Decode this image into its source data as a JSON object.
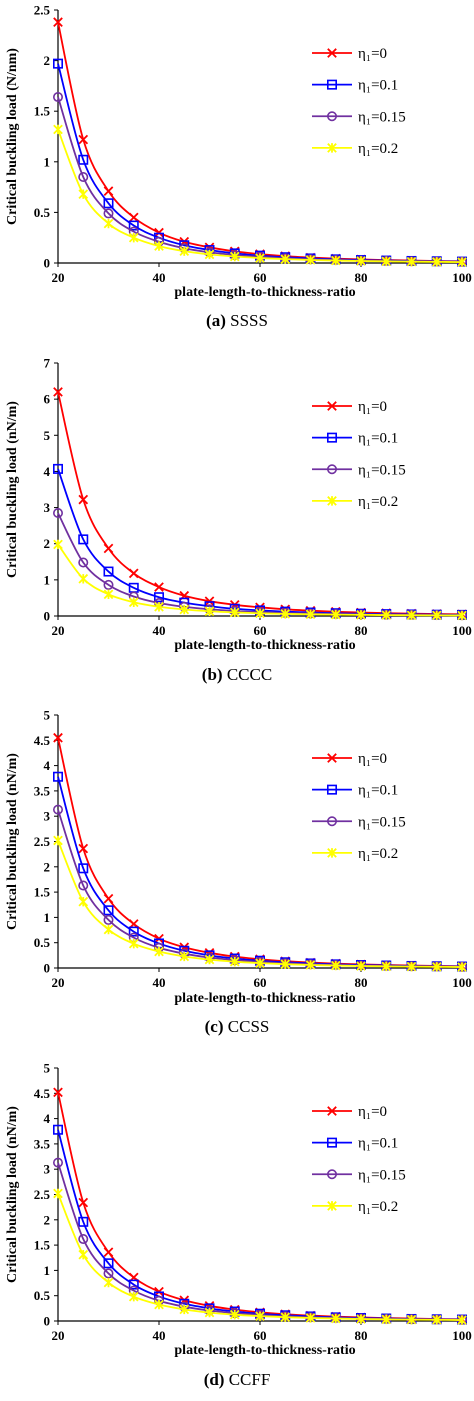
{
  "colors": {
    "eta_0": "#ff0000",
    "eta_0_1": "#0000ff",
    "eta_0_15": "#7030a0",
    "eta_0_2": "#ffff00"
  },
  "chart_data": [
    {
      "type": "line",
      "caption_letter": "(a)",
      "caption_name": "SSSS",
      "xlabel": "plate-length-to-thickness-ratio",
      "ylabel": "Critical buckling load (N/nm)",
      "x": [
        20,
        25,
        30,
        35,
        40,
        45,
        50,
        55,
        60,
        65,
        70,
        75,
        80,
        85,
        90,
        95,
        100
      ],
      "xlim": [
        20,
        100
      ],
      "ylim": [
        0,
        2.5
      ],
      "xticks": [
        20,
        40,
        60,
        80,
        100
      ],
      "yticks": [
        0,
        0.5,
        1,
        1.5,
        2,
        2.5
      ],
      "ytick_labels": [
        "0",
        "0.5",
        "1",
        "1.5",
        "2",
        "2.5"
      ],
      "legend_position": "top-right",
      "series": [
        {
          "name": "η₁=0",
          "marker": "x",
          "color": "#ff0000",
          "values": [
            2.38,
            1.22,
            0.71,
            0.45,
            0.3,
            0.21,
            0.155,
            0.115,
            0.088,
            0.068,
            0.054,
            0.043,
            0.035,
            0.029,
            0.024,
            0.02,
            0.017
          ]
        },
        {
          "name": "η₁=0.1",
          "marker": "square",
          "color": "#0000ff",
          "values": [
            1.97,
            1.02,
            0.59,
            0.37,
            0.25,
            0.175,
            0.128,
            0.095,
            0.073,
            0.057,
            0.045,
            0.036,
            0.029,
            0.024,
            0.02,
            0.017,
            0.014
          ]
        },
        {
          "name": "η₁=0.15",
          "marker": "circle",
          "color": "#7030a0",
          "values": [
            1.64,
            0.85,
            0.49,
            0.31,
            0.21,
            0.146,
            0.106,
            0.079,
            0.061,
            0.047,
            0.037,
            0.03,
            0.024,
            0.02,
            0.017,
            0.014,
            0.012
          ]
        },
        {
          "name": "η₁=0.2",
          "marker": "asterisk",
          "color": "#ffff00",
          "values": [
            1.32,
            0.68,
            0.39,
            0.25,
            0.167,
            0.117,
            0.085,
            0.064,
            0.049,
            0.038,
            0.03,
            0.024,
            0.02,
            0.016,
            0.013,
            0.011,
            0.009
          ]
        }
      ]
    },
    {
      "type": "line",
      "caption_letter": "(b)",
      "caption_name": "CCCC",
      "xlabel": "plate-length-to-thickness-ratio",
      "ylabel": "Critical buckling load (nN/m)",
      "x": [
        20,
        25,
        30,
        35,
        40,
        45,
        50,
        55,
        60,
        65,
        70,
        75,
        80,
        85,
        90,
        95,
        100
      ],
      "xlim": [
        20,
        100
      ],
      "ylim": [
        0,
        7
      ],
      "xticks": [
        20,
        40,
        60,
        80,
        100
      ],
      "yticks": [
        0,
        1,
        2,
        3,
        4,
        5,
        6,
        7
      ],
      "ytick_labels": [
        "0",
        "1",
        "2",
        "3",
        "4",
        "5",
        "6",
        "7"
      ],
      "legend_position": "top-right",
      "series": [
        {
          "name": "η₁=0",
          "marker": "x",
          "color": "#ff0000",
          "values": [
            6.2,
            3.22,
            1.87,
            1.18,
            0.8,
            0.56,
            0.41,
            0.31,
            0.24,
            0.185,
            0.147,
            0.118,
            0.096,
            0.079,
            0.066,
            0.055,
            0.047
          ]
        },
        {
          "name": "η₁=0.1",
          "marker": "square",
          "color": "#0000ff",
          "values": [
            4.07,
            2.12,
            1.23,
            0.78,
            0.52,
            0.37,
            0.27,
            0.2,
            0.155,
            0.121,
            0.096,
            0.077,
            0.063,
            0.052,
            0.043,
            0.036,
            0.031
          ]
        },
        {
          "name": "η₁=0.15",
          "marker": "circle",
          "color": "#7030a0",
          "values": [
            2.85,
            1.48,
            0.86,
            0.54,
            0.36,
            0.255,
            0.186,
            0.139,
            0.107,
            0.084,
            0.067,
            0.054,
            0.044,
            0.036,
            0.03,
            0.025,
            0.021
          ]
        },
        {
          "name": "η₁=0.2",
          "marker": "asterisk",
          "color": "#ffff00",
          "values": [
            1.98,
            1.03,
            0.6,
            0.38,
            0.255,
            0.179,
            0.131,
            0.098,
            0.075,
            0.059,
            0.047,
            0.038,
            0.031,
            0.025,
            0.021,
            0.018,
            0.015
          ]
        }
      ]
    },
    {
      "type": "line",
      "caption_letter": "(c)",
      "caption_name": "CCSS",
      "xlabel": "plate-length-to-thickness-ratio",
      "ylabel": "Critical buckling load (nN/m)",
      "x": [
        20,
        25,
        30,
        35,
        40,
        45,
        50,
        55,
        60,
        65,
        70,
        75,
        80,
        85,
        90,
        95,
        100
      ],
      "xlim": [
        20,
        100
      ],
      "ylim": [
        0,
        5
      ],
      "xticks": [
        20,
        40,
        60,
        80,
        100
      ],
      "yticks": [
        0,
        0.5,
        1,
        1.5,
        2,
        2.5,
        3,
        3.5,
        4,
        4.5,
        5
      ],
      "ytick_labels": [
        "0",
        "0.5",
        "1",
        "1.5",
        "2",
        "2.5",
        "3",
        "3.5",
        "4",
        "4.5",
        "5"
      ],
      "legend_position": "top-right",
      "series": [
        {
          "name": "η₁=0",
          "marker": "x",
          "color": "#ff0000",
          "values": [
            4.55,
            2.36,
            1.37,
            0.87,
            0.58,
            0.41,
            0.3,
            0.225,
            0.173,
            0.135,
            0.108,
            0.087,
            0.071,
            0.058,
            0.048,
            0.041,
            0.035
          ]
        },
        {
          "name": "η₁=0.1",
          "marker": "square",
          "color": "#0000ff",
          "values": [
            3.78,
            1.97,
            1.14,
            0.72,
            0.485,
            0.34,
            0.25,
            0.187,
            0.144,
            0.113,
            0.09,
            0.072,
            0.059,
            0.049,
            0.04,
            0.034,
            0.029
          ]
        },
        {
          "name": "η₁=0.15",
          "marker": "circle",
          "color": "#7030a0",
          "values": [
            3.13,
            1.63,
            0.95,
            0.6,
            0.4,
            0.283,
            0.207,
            0.155,
            0.119,
            0.093,
            0.074,
            0.06,
            0.049,
            0.04,
            0.034,
            0.028,
            0.024
          ]
        },
        {
          "name": "η₁=0.2",
          "marker": "asterisk",
          "color": "#ffff00",
          "values": [
            2.52,
            1.31,
            0.76,
            0.48,
            0.325,
            0.228,
            0.166,
            0.125,
            0.096,
            0.075,
            0.06,
            0.048,
            0.039,
            0.032,
            0.027,
            0.023,
            0.019
          ]
        }
      ]
    },
    {
      "type": "line",
      "caption_letter": "(d)",
      "caption_name": "CCFF",
      "xlabel": "plate-length-to-thickness-ratio",
      "ylabel": "Critical buckling load (nN/m)",
      "x": [
        20,
        25,
        30,
        35,
        40,
        45,
        50,
        55,
        60,
        65,
        70,
        75,
        80,
        85,
        90,
        95,
        100
      ],
      "xlim": [
        20,
        100
      ],
      "ylim": [
        0,
        5
      ],
      "xticks": [
        20,
        40,
        60,
        80,
        100
      ],
      "yticks": [
        0,
        0.5,
        1,
        1.5,
        2,
        2.5,
        3,
        3.5,
        4,
        4.5,
        5
      ],
      "ytick_labels": [
        "0",
        "0.5",
        "1",
        "1.5",
        "2",
        "2.5",
        "3",
        "3.5",
        "4",
        "4.5",
        "5"
      ],
      "legend_position": "top-right",
      "series": [
        {
          "name": "η₁=0",
          "marker": "x",
          "color": "#ff0000",
          "values": [
            4.52,
            2.34,
            1.36,
            0.86,
            0.58,
            0.41,
            0.3,
            0.224,
            0.172,
            0.134,
            0.107,
            0.086,
            0.07,
            0.058,
            0.048,
            0.04,
            0.034
          ]
        },
        {
          "name": "η₁=0.1",
          "marker": "square",
          "color": "#0000ff",
          "values": [
            3.78,
            1.96,
            1.14,
            0.72,
            0.485,
            0.34,
            0.25,
            0.187,
            0.144,
            0.113,
            0.09,
            0.072,
            0.059,
            0.049,
            0.04,
            0.034,
            0.029
          ]
        },
        {
          "name": "η₁=0.15",
          "marker": "circle",
          "color": "#7030a0",
          "values": [
            3.13,
            1.62,
            0.94,
            0.6,
            0.4,
            0.283,
            0.207,
            0.155,
            0.119,
            0.093,
            0.074,
            0.06,
            0.049,
            0.04,
            0.034,
            0.028,
            0.024
          ]
        },
        {
          "name": "η₁=0.2",
          "marker": "asterisk",
          "color": "#ffff00",
          "values": [
            2.52,
            1.31,
            0.76,
            0.48,
            0.325,
            0.228,
            0.166,
            0.125,
            0.096,
            0.075,
            0.06,
            0.048,
            0.039,
            0.032,
            0.027,
            0.023,
            0.019
          ]
        }
      ]
    }
  ]
}
